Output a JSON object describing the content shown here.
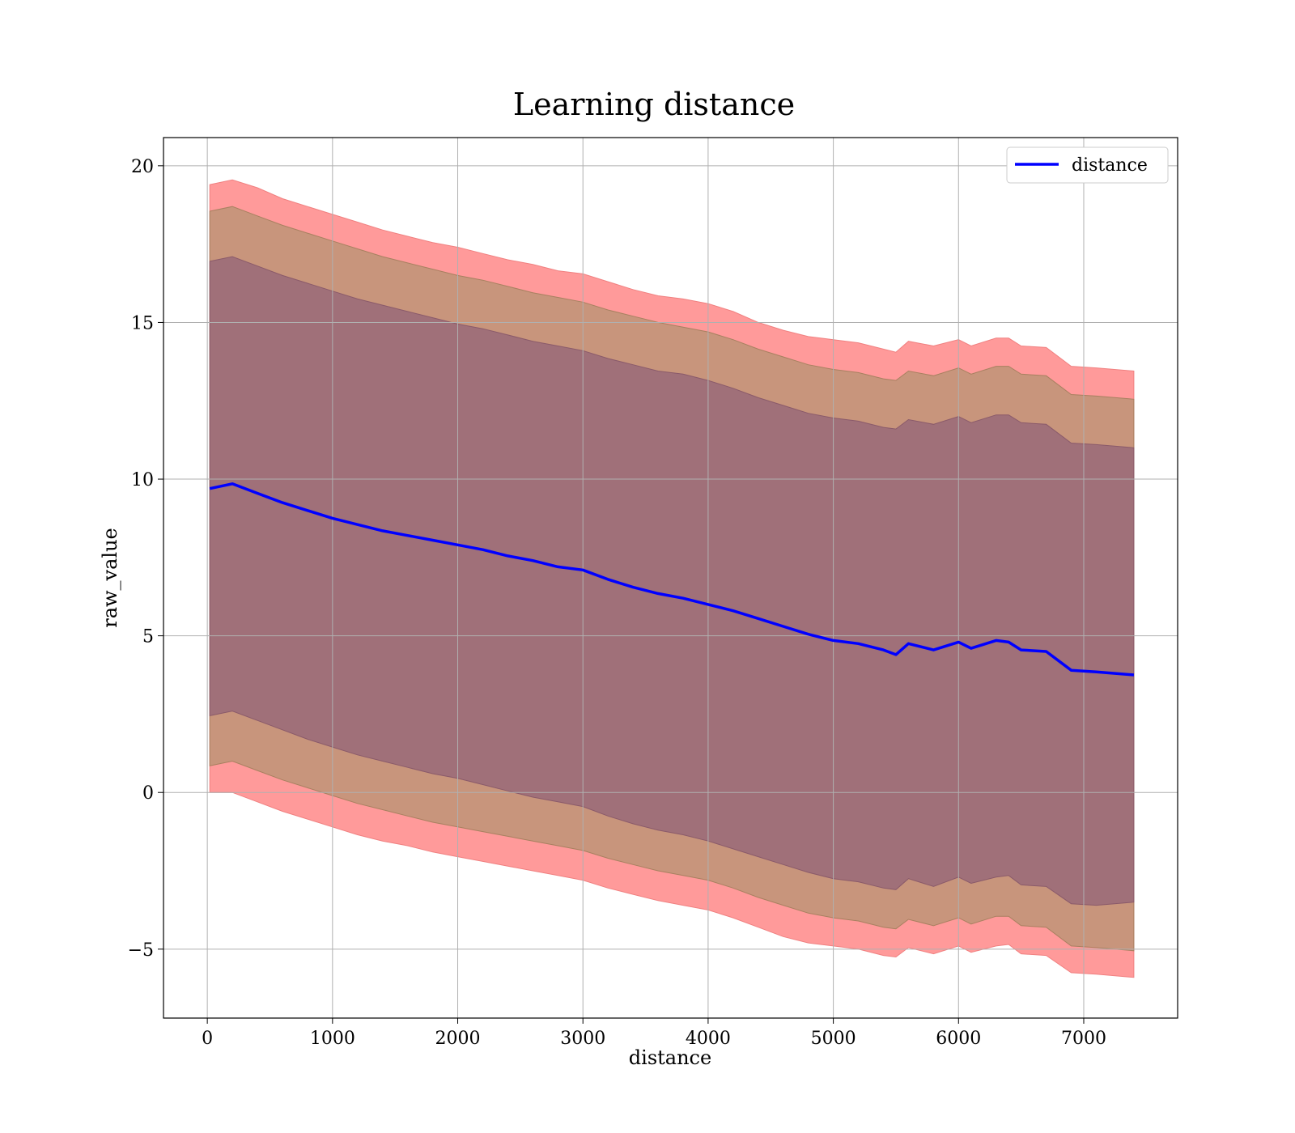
{
  "chart_data": {
    "type": "line",
    "title": "Learning distance",
    "xlabel": "distance",
    "ylabel": "raw_value",
    "xlim": [
      -350,
      7750
    ],
    "ylim": [
      -7.2,
      20.9
    ],
    "xticks": [
      0,
      1000,
      2000,
      3000,
      4000,
      5000,
      6000,
      7000
    ],
    "yticks": [
      -5,
      0,
      5,
      10,
      15,
      20
    ],
    "ytick_labels": [
      "−5",
      "0",
      "5",
      "10",
      "15",
      "20"
    ],
    "grid": true,
    "legend": {
      "position": "top-right",
      "entries": [
        "distance"
      ]
    },
    "colors": {
      "line": "#0000ff",
      "band_outer": "#ff9a9a",
      "band_middle": "#c8957c",
      "band_inner": "#a07079",
      "grid": "#b0b0b0"
    },
    "x": [
      20,
      200,
      400,
      600,
      800,
      1000,
      1200,
      1400,
      1600,
      1800,
      2000,
      2200,
      2400,
      2600,
      2800,
      3000,
      3200,
      3400,
      3600,
      3800,
      4000,
      4200,
      4400,
      4600,
      4800,
      5000,
      5200,
      5400,
      5500,
      5600,
      5800,
      6000,
      6100,
      6300,
      6400,
      6500,
      6700,
      6900,
      7100,
      7400
    ],
    "series": [
      {
        "name": "distance",
        "values": [
          9.7,
          9.85,
          9.55,
          9.25,
          9.0,
          8.75,
          8.55,
          8.35,
          8.2,
          8.05,
          7.9,
          7.75,
          7.55,
          7.4,
          7.2,
          7.1,
          6.8,
          6.55,
          6.35,
          6.2,
          6.0,
          5.8,
          5.55,
          5.3,
          5.05,
          4.85,
          4.75,
          4.55,
          4.4,
          4.75,
          4.55,
          4.8,
          4.6,
          4.85,
          4.8,
          4.55,
          4.5,
          3.9,
          3.85,
          3.75
        ]
      }
    ],
    "bands": [
      {
        "level": "outer",
        "lower": [
          0.0,
          0.0,
          -0.3,
          -0.6,
          -0.85,
          -1.1,
          -1.35,
          -1.55,
          -1.7,
          -1.9,
          -2.05,
          -2.2,
          -2.35,
          -2.5,
          -2.65,
          -2.8,
          -3.05,
          -3.25,
          -3.45,
          -3.6,
          -3.75,
          -4.0,
          -4.3,
          -4.6,
          -4.8,
          -4.9,
          -5.0,
          -5.2,
          -5.25,
          -4.95,
          -5.15,
          -4.9,
          -5.1,
          -4.9,
          -4.85,
          -5.15,
          -5.2,
          -5.75,
          -5.8,
          -5.9
        ],
        "upper": [
          19.4,
          19.55,
          19.3,
          18.95,
          18.7,
          18.45,
          18.2,
          17.95,
          17.75,
          17.55,
          17.4,
          17.2,
          17.0,
          16.85,
          16.65,
          16.55,
          16.3,
          16.05,
          15.85,
          15.75,
          15.6,
          15.35,
          15.0,
          14.75,
          14.55,
          14.45,
          14.35,
          14.15,
          14.05,
          14.4,
          14.25,
          14.45,
          14.25,
          14.5,
          14.5,
          14.25,
          14.2,
          13.6,
          13.55,
          13.45
        ]
      },
      {
        "level": "middle",
        "lower": [
          0.85,
          1.0,
          0.7,
          0.4,
          0.15,
          -0.1,
          -0.35,
          -0.55,
          -0.75,
          -0.95,
          -1.1,
          -1.25,
          -1.4,
          -1.55,
          -1.7,
          -1.85,
          -2.1,
          -2.3,
          -2.5,
          -2.65,
          -2.8,
          -3.05,
          -3.35,
          -3.6,
          -3.85,
          -4.0,
          -4.1,
          -4.3,
          -4.35,
          -4.05,
          -4.25,
          -4.0,
          -4.2,
          -3.95,
          -3.95,
          -4.25,
          -4.3,
          -4.9,
          -4.95,
          -5.05
        ],
        "upper": [
          18.55,
          18.7,
          18.4,
          18.1,
          17.85,
          17.6,
          17.35,
          17.1,
          16.9,
          16.7,
          16.5,
          16.35,
          16.15,
          15.95,
          15.8,
          15.65,
          15.4,
          15.2,
          15.0,
          14.85,
          14.7,
          14.45,
          14.15,
          13.9,
          13.65,
          13.5,
          13.4,
          13.2,
          13.15,
          13.45,
          13.3,
          13.55,
          13.35,
          13.6,
          13.6,
          13.35,
          13.3,
          12.7,
          12.65,
          12.55
        ]
      },
      {
        "level": "inner",
        "lower": [
          2.45,
          2.6,
          2.3,
          2.0,
          1.7,
          1.45,
          1.2,
          1.0,
          0.8,
          0.6,
          0.45,
          0.25,
          0.05,
          -0.15,
          -0.3,
          -0.45,
          -0.75,
          -1.0,
          -1.2,
          -1.35,
          -1.55,
          -1.8,
          -2.05,
          -2.3,
          -2.55,
          -2.75,
          -2.85,
          -3.05,
          -3.1,
          -2.75,
          -3.0,
          -2.7,
          -2.9,
          -2.7,
          -2.65,
          -2.95,
          -3.0,
          -3.55,
          -3.6,
          -3.5
        ],
        "upper": [
          16.95,
          17.1,
          16.8,
          16.5,
          16.25,
          16.0,
          15.75,
          15.55,
          15.35,
          15.15,
          14.95,
          14.8,
          14.6,
          14.4,
          14.25,
          14.1,
          13.85,
          13.65,
          13.45,
          13.35,
          13.15,
          12.9,
          12.6,
          12.35,
          12.1,
          11.95,
          11.85,
          11.65,
          11.6,
          11.9,
          11.75,
          12.0,
          11.8,
          12.05,
          12.05,
          11.8,
          11.75,
          11.15,
          11.1,
          11.0
        ]
      }
    ]
  }
}
